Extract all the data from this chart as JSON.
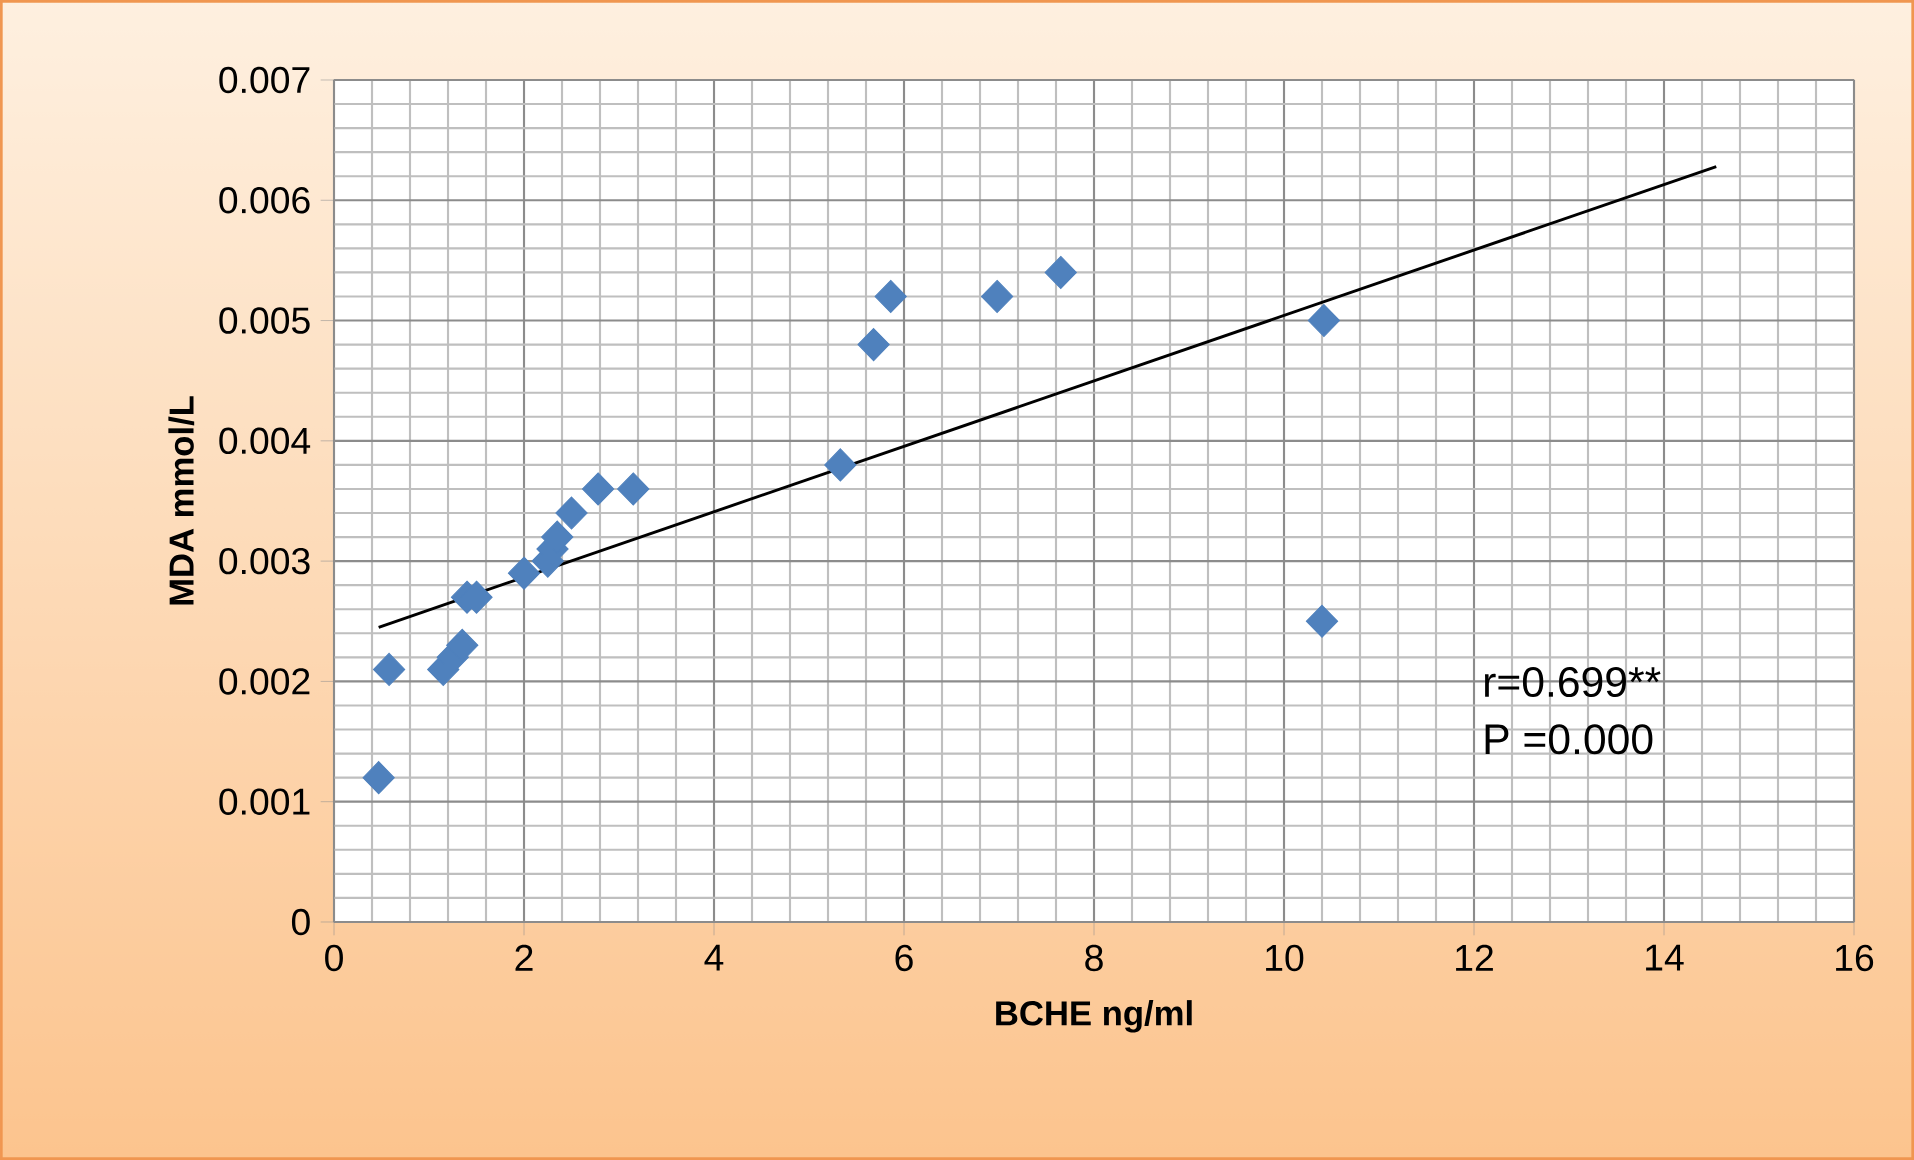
{
  "chart_data": {
    "type": "scatter",
    "xlabel": "BCHE ng/ml",
    "ylabel": "MDA mmol/L",
    "xlim": [
      0,
      16
    ],
    "xticks": [
      0,
      2,
      4,
      6,
      8,
      10,
      12,
      14,
      16
    ],
    "ylim": [
      0,
      0.007
    ],
    "yticks": [
      0,
      0.001,
      0.002,
      0.003,
      0.004,
      0.005,
      0.006,
      0.007
    ],
    "grid": true,
    "marker": "diamond",
    "series": [
      {
        "color": "#4f81bd",
        "x": [
          0.47,
          0.58,
          1.15,
          1.25,
          1.35,
          1.4,
          1.5,
          2.0,
          2.25,
          2.3,
          2.35,
          2.5,
          2.78,
          3.15,
          5.33,
          5.68,
          5.86,
          6.98,
          7.65,
          10.42,
          10.4
        ],
        "values": [
          0.0012,
          0.0021,
          0.0021,
          0.0022,
          0.0023,
          0.0027,
          0.0027,
          0.0029,
          0.003,
          0.0031,
          0.0032,
          0.0034,
          0.0036,
          0.0036,
          0.0038,
          0.0048,
          0.0052,
          0.0052,
          0.0054,
          0.005,
          0.0025
        ]
      },
      {
        "type": "line",
        "color": "#000000",
        "marker": "none",
        "x": [
          0.47,
          14.55
        ],
        "values": [
          0.00245,
          0.00628
        ]
      }
    ],
    "annotations": [
      "r=0.699**",
      "P =0.000"
    ]
  }
}
